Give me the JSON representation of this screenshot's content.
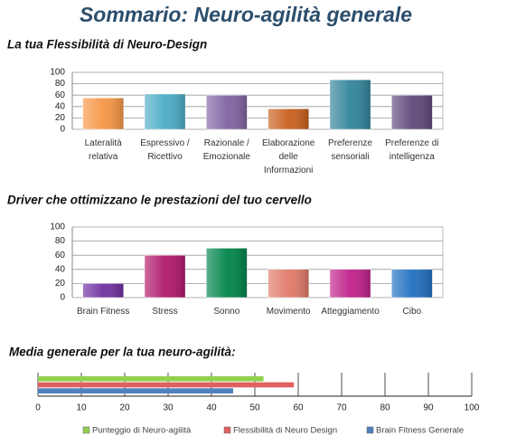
{
  "title": "Sommario: Neuro-agilità generale",
  "chart_data": [
    {
      "type": "bar",
      "title": "La tua Flessibilità di Neuro-Design",
      "categories": [
        "Lateralità relativa",
        "Espressivo / Ricettivo",
        "Razionale / Emozionale",
        "Elaborazione delle Informazioni",
        "Preferenze sensoriali",
        "Preferenze di intelligenza"
      ],
      "values": [
        55,
        62,
        60,
        36,
        87,
        60
      ],
      "colors": [
        "#f79646",
        "#4bacc6",
        "#8064a2",
        "#c8601e",
        "#31849b",
        "#5f497a"
      ],
      "ylim": [
        0,
        100
      ],
      "yticks": [
        0,
        20,
        40,
        60,
        80,
        100
      ],
      "grid": true
    },
    {
      "type": "bar",
      "title": "Driver che ottimizzano le prestazioni del tuo cervello",
      "categories": [
        "Brain Fitness",
        "Stress",
        "Sonno",
        "Movimento",
        "Atteggiamento",
        "Cibo"
      ],
      "values": [
        20,
        60,
        70,
        40,
        40,
        40
      ],
      "colors": [
        "#7030a0",
        "#b0186a",
        "#00854a",
        "#e07a68",
        "#c0208a",
        "#2070c0"
      ],
      "ylim": [
        0,
        100
      ],
      "yticks": [
        0,
        20,
        40,
        60,
        80,
        100
      ],
      "grid": true
    },
    {
      "type": "hbar",
      "title": "Media generale per la tua neuro-agilità:",
      "series": [
        {
          "name": "Punteggio di Neuro-agilità",
          "color": "#92d050",
          "values": [
            52
          ]
        },
        {
          "name": "Flessibilità di Neuro Design",
          "color": "#e06060",
          "values": [
            59
          ]
        },
        {
          "name": "Brain Fitness Generale",
          "color": "#4f81bd",
          "values": [
            45
          ]
        }
      ],
      "xlim": [
        0,
        100
      ],
      "xticks": [
        0,
        10,
        20,
        30,
        40,
        50,
        60,
        70,
        80,
        90,
        100
      ],
      "grid": true,
      "legend": "bottom"
    }
  ]
}
